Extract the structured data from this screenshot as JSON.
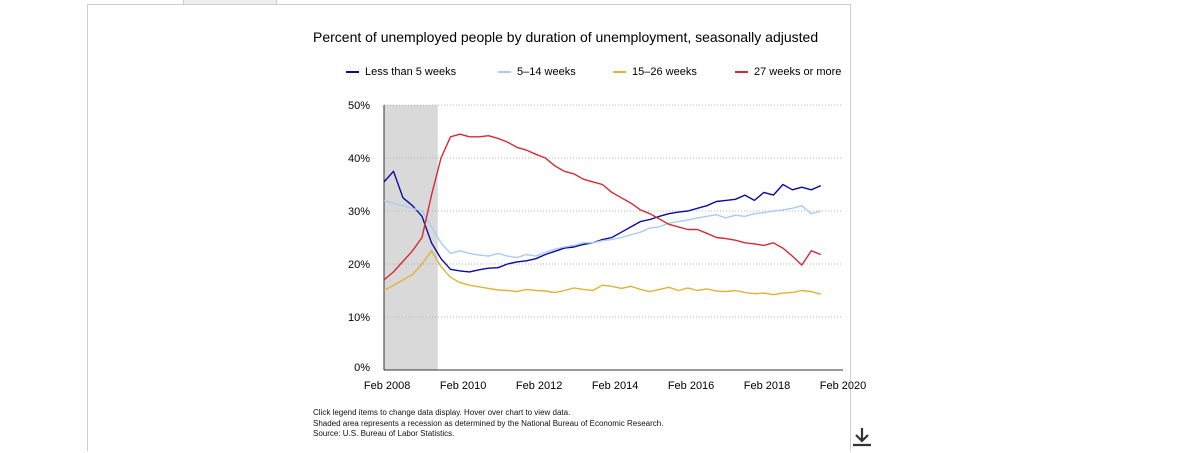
{
  "title": "Percent of unemployed people by duration of unemployment, seasonally adjusted",
  "notes": [
    "Click legend items to change data display. Hover over chart to view data.",
    "Shaded area represents a recession as determined by the National Bureau of Economic Research.",
    "Source: U.S. Bureau of Labor Statistics."
  ],
  "legend": [
    {
      "label": "Less than 5 weeks",
      "color": "#0a0a9e"
    },
    {
      "label": "5–14 weeks",
      "color": "#a8cdf0"
    },
    {
      "label": "15–26 weeks",
      "color": "#e0b338"
    },
    {
      "label": "27 weeks or more",
      "color": "#d42a34"
    }
  ],
  "download_icon": "download-icon",
  "chart_data": {
    "type": "line",
    "title": "Percent of unemployed people by duration of unemployment, seasonally adjusted",
    "xlabel": "",
    "ylabel": "",
    "x_ticks": [
      "Feb 2008",
      "Feb 2010",
      "Feb 2012",
      "Feb 2014",
      "Feb 2016",
      "Feb 2018",
      "Feb 2020"
    ],
    "y_ticks": [
      "0%",
      "10%",
      "20%",
      "30%",
      "40%",
      "50%"
    ],
    "xlim": [
      "2008-01",
      "2020-02"
    ],
    "ylim": [
      0,
      50
    ],
    "grid": "horizontal dotted",
    "legend_position": "top",
    "recession_shading": {
      "start": "2007-12",
      "end": "2009-06"
    },
    "x": [
      "2008-01",
      "2008-04",
      "2008-07",
      "2008-10",
      "2009-01",
      "2009-04",
      "2009-07",
      "2009-10",
      "2010-01",
      "2010-04",
      "2010-07",
      "2010-10",
      "2011-01",
      "2011-04",
      "2011-07",
      "2011-10",
      "2012-01",
      "2012-04",
      "2012-07",
      "2012-10",
      "2013-01",
      "2013-04",
      "2013-07",
      "2013-10",
      "2014-01",
      "2014-04",
      "2014-07",
      "2014-10",
      "2015-01",
      "2015-04",
      "2015-07",
      "2015-10",
      "2016-01",
      "2016-04",
      "2016-07",
      "2016-10",
      "2017-01",
      "2017-04",
      "2017-07",
      "2017-10",
      "2018-01",
      "2018-04",
      "2018-07",
      "2018-10",
      "2019-01",
      "2019-04",
      "2019-07"
    ],
    "series": [
      {
        "name": "Less than 5 weeks",
        "values": [
          35.5,
          37.5,
          32.5,
          31.0,
          29.0,
          24.0,
          21.0,
          19.0,
          18.7,
          18.5,
          18.9,
          19.2,
          19.3,
          20.0,
          20.4,
          20.6,
          21.0,
          21.8,
          22.4,
          23.0,
          23.2,
          23.7,
          24.0,
          24.6,
          25.0,
          26.0,
          27.0,
          28.0,
          28.4,
          29.0,
          29.5,
          29.8,
          30.0,
          30.5,
          31.0,
          31.8,
          32.0,
          32.2,
          33.0,
          32.0,
          33.5,
          33.0,
          35.0,
          34.0,
          34.5,
          34.0,
          34.8
        ]
      },
      {
        "name": "5–14 weeks",
        "values": [
          32.0,
          31.5,
          31.0,
          30.5,
          30.0,
          27.0,
          24.0,
          22.0,
          22.5,
          22.0,
          21.7,
          21.5,
          22.0,
          21.5,
          21.2,
          21.8,
          21.5,
          22.2,
          22.8,
          23.2,
          23.5,
          24.0,
          24.0,
          24.4,
          24.6,
          25.0,
          25.5,
          26.0,
          26.8,
          27.0,
          27.7,
          28.0,
          28.3,
          28.7,
          29.0,
          29.3,
          28.7,
          29.2,
          29.0,
          29.5,
          29.7,
          30.0,
          30.2,
          30.5,
          31.0,
          29.5,
          30.0
        ]
      },
      {
        "name": "15–26 weeks",
        "values": [
          15.0,
          16.0,
          17.0,
          18.0,
          20.0,
          22.5,
          19.5,
          17.5,
          16.5,
          16.0,
          15.7,
          15.4,
          15.1,
          15.0,
          14.8,
          15.2,
          15.0,
          14.9,
          14.6,
          15.0,
          15.5,
          15.2,
          15.0,
          16.0,
          15.8,
          15.4,
          15.8,
          15.2,
          14.8,
          15.2,
          15.6,
          15.0,
          15.5,
          15.0,
          15.3,
          14.9,
          14.8,
          15.0,
          14.6,
          14.4,
          14.5,
          14.2,
          14.5,
          14.6,
          15.0,
          14.8,
          14.3
        ]
      },
      {
        "name": "27 weeks or more",
        "values": [
          17.0,
          18.5,
          20.5,
          22.5,
          25.0,
          33.0,
          40.0,
          44.0,
          44.5,
          44.0,
          44.0,
          44.2,
          43.7,
          43.0,
          42.0,
          41.5,
          40.7,
          40.0,
          38.5,
          37.5,
          37.0,
          36.0,
          35.5,
          35.0,
          33.5,
          32.5,
          31.5,
          30.2,
          29.5,
          28.5,
          27.5,
          27.0,
          26.5,
          26.5,
          25.8,
          25.0,
          24.8,
          24.5,
          24.0,
          23.8,
          23.5,
          24.0,
          23.0,
          21.5,
          19.8,
          22.5,
          21.8
        ]
      }
    ]
  }
}
